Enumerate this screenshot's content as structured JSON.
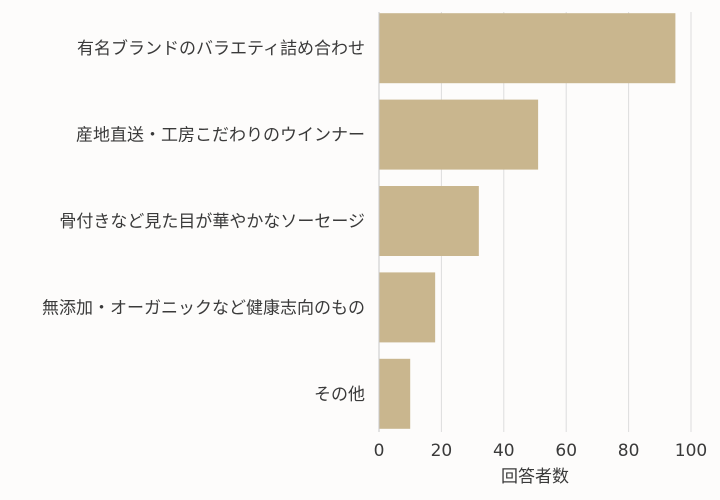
{
  "chart_data": {
    "type": "bar",
    "orientation": "horizontal",
    "categories": [
      "有名ブランドのバラエティ詰め合わせ",
      "産地直送・工房こだわりのウインナー",
      "骨付きなど見た目が華やかなソーセージ",
      "無添加・オーガニックなど健康志向のもの",
      "その他"
    ],
    "values": [
      95,
      51,
      32,
      18,
      10
    ],
    "xlabel": "回答者数",
    "ylabel": "",
    "xlim": [
      0,
      100
    ],
    "xticks": [
      0,
      20,
      40,
      60,
      80,
      100
    ],
    "grid": true,
    "bar_color": "#c9b68e"
  }
}
